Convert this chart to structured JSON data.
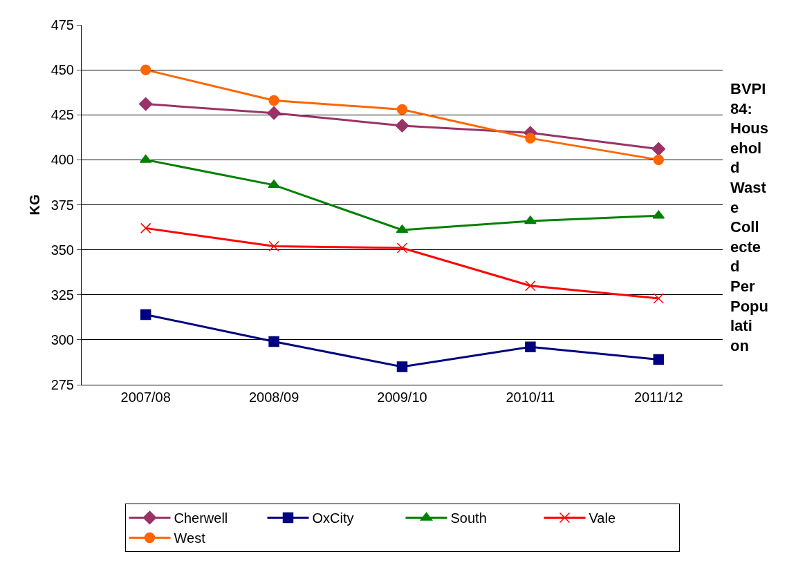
{
  "chart_data": {
    "type": "line",
    "title": "BVPI 84: Household Waste Collected Per Population",
    "ylabel": "KG",
    "categories": [
      "2007/08",
      "2008/09",
      "2009/10",
      "2010/11",
      "2011/12"
    ],
    "series": [
      {
        "name": "Cherwell",
        "color": "#993366",
        "marker": "diamond",
        "values": [
          431,
          426,
          419,
          415,
          406
        ]
      },
      {
        "name": "OxCity",
        "color": "#000080",
        "marker": "square",
        "values": [
          314,
          299,
          285,
          296,
          289
        ]
      },
      {
        "name": "South",
        "color": "#008000",
        "marker": "triangle",
        "values": [
          400,
          386,
          361,
          366,
          369
        ]
      },
      {
        "name": "Vale",
        "color": "#ff0000",
        "marker": "cross",
        "values": [
          362,
          352,
          351,
          330,
          323
        ]
      },
      {
        "name": "West",
        "color": "#ff6600",
        "marker": "circle",
        "values": [
          450,
          433,
          428,
          412,
          400
        ]
      }
    ],
    "ylim": [
      275,
      475
    ],
    "yticks": [
      275,
      300,
      325,
      350,
      375,
      400,
      425,
      450,
      475
    ],
    "grid": "y",
    "legend": "bottom",
    "line_style": "solid"
  }
}
